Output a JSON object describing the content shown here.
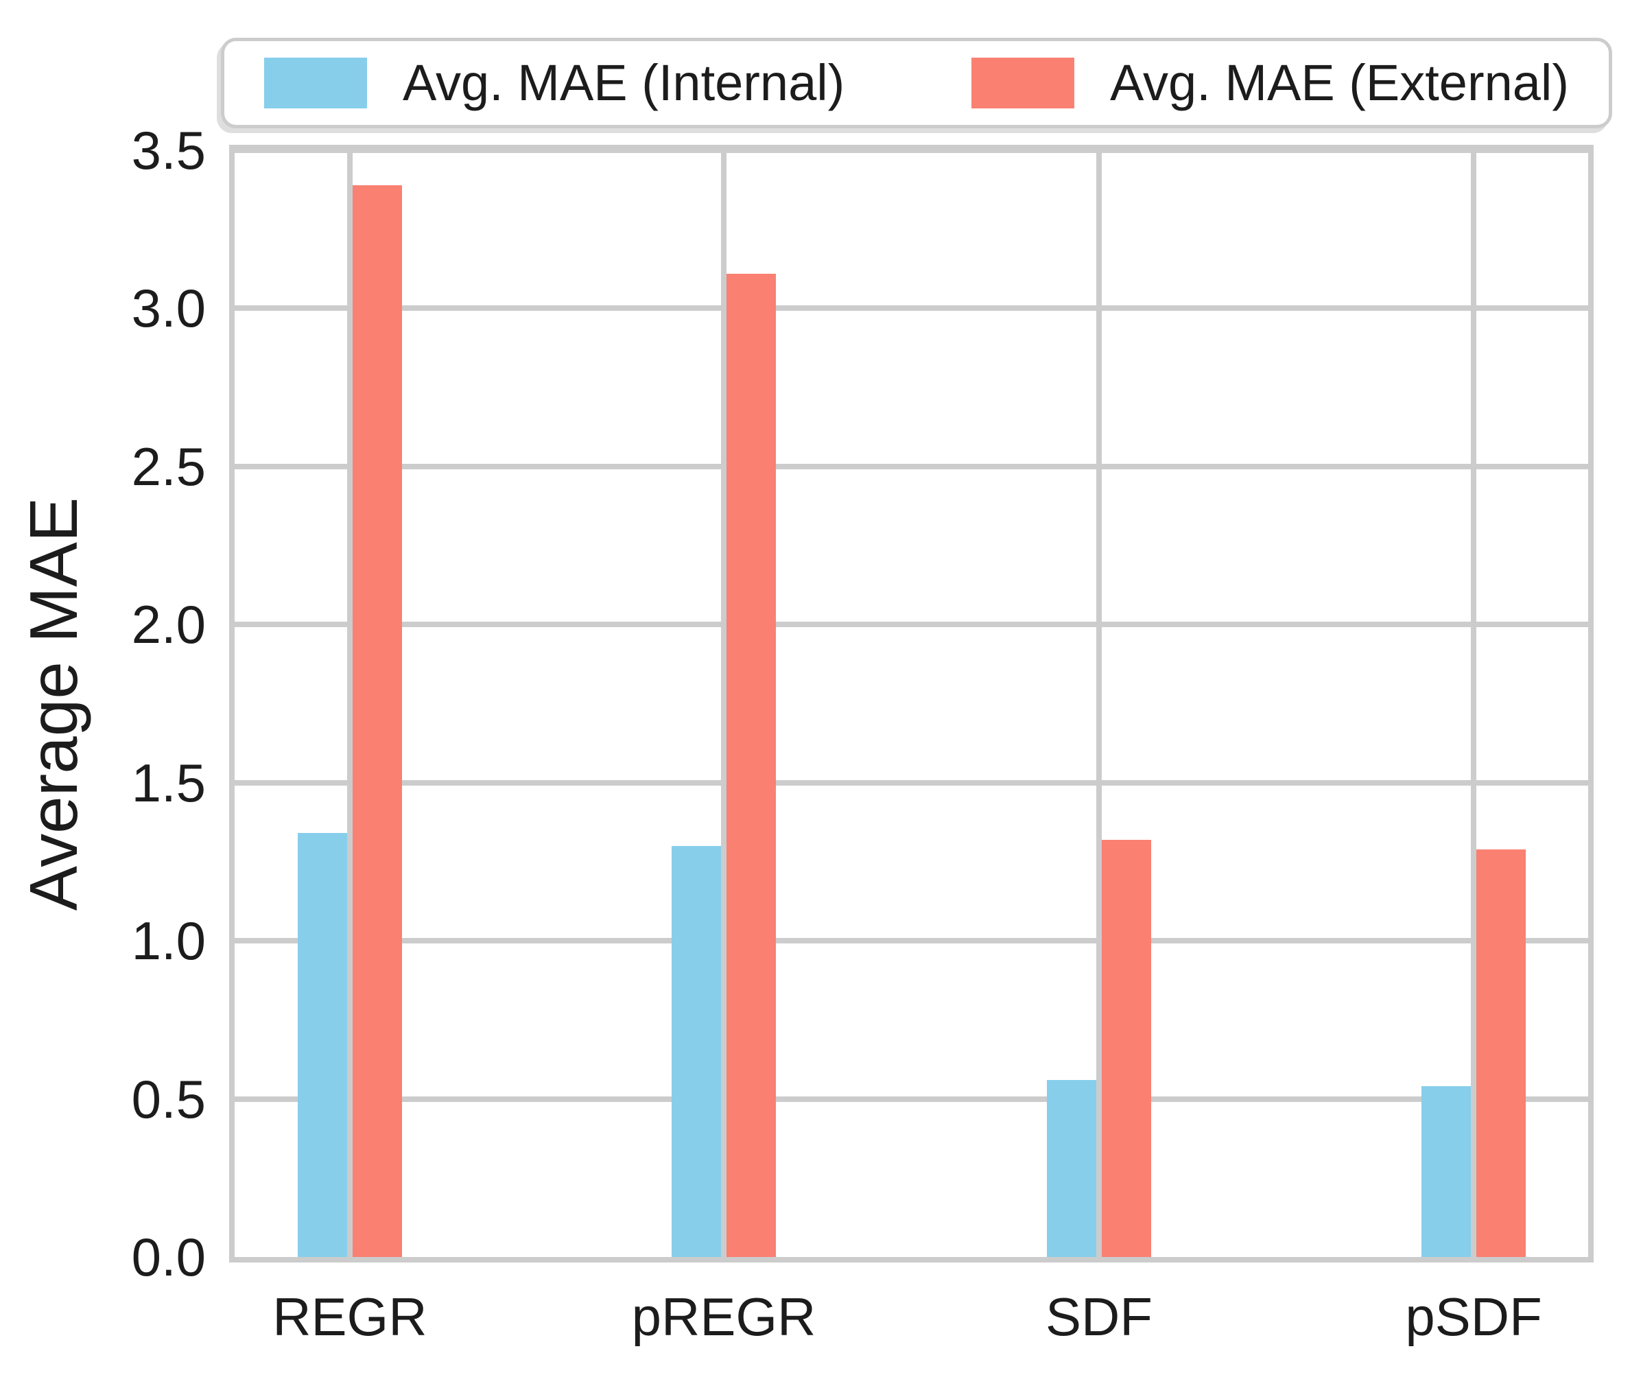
{
  "chart_data": {
    "type": "bar",
    "title": "",
    "xlabel": "",
    "ylabel": "Average MAE",
    "categories": [
      "REGR",
      "pREGR",
      "SDF",
      "pSDF"
    ],
    "series": [
      {
        "name": "Avg. MAE (Internal)",
        "color": "#87CEEB",
        "values": [
          1.34,
          1.3,
          0.56,
          0.54
        ]
      },
      {
        "name": "Avg. MAE (External)",
        "color": "#FA8072",
        "values": [
          3.39,
          3.11,
          1.32,
          1.29
        ]
      }
    ],
    "ylim": [
      0,
      3.5
    ],
    "yticks": [
      0.0,
      0.5,
      1.0,
      1.5,
      2.0,
      2.5,
      3.0,
      3.5
    ],
    "grid": "on",
    "legend_position": "top"
  },
  "colors": {
    "internal_bar": "#87CEEB",
    "external_bar": "#FA8072",
    "grid": "#cccccc",
    "text": "#1c1c1c"
  }
}
